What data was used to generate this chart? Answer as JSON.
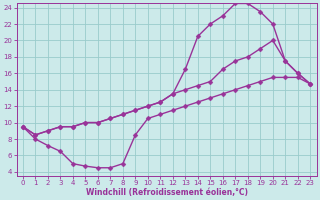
{
  "background_color": "#cceaea",
  "line_color": "#993399",
  "grid_color": "#99cccc",
  "xlabel": "Windchill (Refroidissement éolien,°C)",
  "xlabel_color": "#993399",
  "tick_color": "#993399",
  "xlim": [
    -0.5,
    23.5
  ],
  "ylim": [
    3.5,
    24.5
  ],
  "xticks": [
    0,
    1,
    2,
    3,
    4,
    5,
    6,
    7,
    8,
    9,
    10,
    11,
    12,
    13,
    14,
    15,
    16,
    17,
    18,
    19,
    20,
    21,
    22,
    23
  ],
  "yticks": [
    4,
    6,
    8,
    10,
    12,
    14,
    16,
    18,
    20,
    22,
    24
  ],
  "curve1_x": [
    0,
    1,
    2,
    3,
    4,
    5,
    6,
    7,
    8,
    9,
    10,
    11,
    12,
    13,
    14,
    15,
    16,
    17,
    18,
    19,
    20,
    21,
    22,
    23
  ],
  "curve1_y": [
    9.5,
    8.0,
    7.2,
    6.5,
    5.0,
    4.7,
    4.5,
    4.5,
    5.0,
    8.5,
    10.5,
    11.0,
    11.5,
    12.0,
    12.5,
    13.0,
    13.5,
    14.0,
    14.5,
    15.0,
    15.5,
    15.5,
    15.5,
    14.7
  ],
  "curve2_x": [
    0,
    1,
    2,
    3,
    4,
    5,
    6,
    7,
    8,
    9,
    10,
    11,
    12,
    13,
    14,
    15,
    16,
    17,
    18,
    19,
    20,
    21,
    22,
    23
  ],
  "curve2_y": [
    9.5,
    8.5,
    9.0,
    9.5,
    9.5,
    10.0,
    10.0,
    10.5,
    11.0,
    11.5,
    12.0,
    12.5,
    13.5,
    16.5,
    20.5,
    22.0,
    23.0,
    24.5,
    24.5,
    23.5,
    22.0,
    17.5,
    16.0,
    14.7
  ],
  "curve3_x": [
    0,
    1,
    2,
    3,
    4,
    5,
    6,
    7,
    8,
    9,
    10,
    11,
    12,
    13,
    14,
    15,
    16,
    17,
    18,
    19,
    20,
    21,
    22,
    23
  ],
  "curve3_y": [
    9.5,
    8.5,
    9.0,
    9.5,
    9.5,
    10.0,
    10.0,
    10.5,
    11.0,
    11.5,
    12.0,
    12.5,
    13.5,
    14.0,
    14.5,
    15.0,
    16.5,
    17.5,
    18.0,
    19.0,
    20.0,
    17.5,
    16.0,
    14.7
  ],
  "marker_style": "D",
  "marker_size": 2.5,
  "linewidth": 1.0
}
